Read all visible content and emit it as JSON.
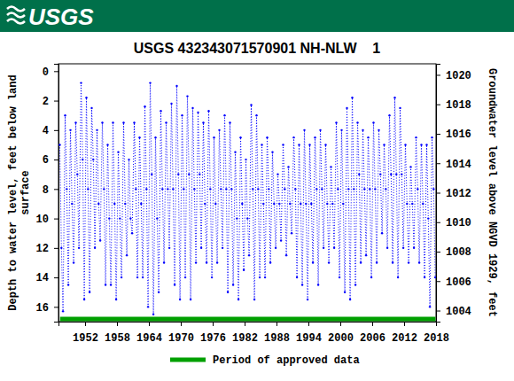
{
  "header": {
    "logo": "USGS"
  },
  "chart_data": {
    "type": "line",
    "title": "USGS 432343071570901 NH-NLW    1",
    "y_label": [
      "Depth to water level, feet below land",
      "surface"
    ],
    "y2_label": "Groundwater level above NGVD 1929, feet",
    "xlim": [
      1947,
      2018
    ],
    "xticks": [
      1952,
      1958,
      1964,
      1970,
      1976,
      1982,
      1988,
      1994,
      2000,
      2006,
      2012,
      2018
    ],
    "ylim": [
      17,
      -0.5
    ],
    "yticks": [
      0,
      2,
      4,
      6,
      8,
      10,
      12,
      14,
      16
    ],
    "y2lim": [
      1003.25,
      1020.75
    ],
    "y2ticks": [
      1004,
      1006,
      1008,
      1010,
      1012,
      1014,
      1016,
      1018,
      1020
    ],
    "grid": false,
    "legend": "bottom",
    "series": [
      {
        "color": "#0000ff",
        "marker": "dot",
        "line_style": "dotted",
        "x": [
          1947.25,
          1947.55,
          1947.85,
          1948.25,
          1948.55,
          1948.85,
          1949.25,
          1949.55,
          1949.85,
          1950.25,
          1950.55,
          1950.85,
          1951.25,
          1951.55,
          1951.85,
          1952.25,
          1952.55,
          1952.85,
          1953.25,
          1953.55,
          1953.85,
          1954.25,
          1954.55,
          1954.85,
          1955.25,
          1955.55,
          1955.85,
          1956.25,
          1956.55,
          1956.85,
          1957.25,
          1957.55,
          1957.85,
          1958.25,
          1958.55,
          1958.85,
          1959.25,
          1959.55,
          1959.85,
          1960.25,
          1960.55,
          1960.85,
          1961.25,
          1961.55,
          1961.85,
          1962.25,
          1962.55,
          1962.85,
          1963.25,
          1963.55,
          1963.85,
          1964.25,
          1964.55,
          1964.85,
          1965.25,
          1965.55,
          1965.85,
          1966.25,
          1966.55,
          1966.85,
          1967.25,
          1967.55,
          1967.85,
          1968.25,
          1968.55,
          1968.85,
          1969.25,
          1969.55,
          1969.85,
          1970.25,
          1970.55,
          1970.85,
          1971.25,
          1971.55,
          1971.85,
          1972.25,
          1972.55,
          1972.85,
          1973.25,
          1973.55,
          1973.85,
          1974.25,
          1974.55,
          1974.85,
          1975.25,
          1975.55,
          1975.85,
          1976.25,
          1976.55,
          1976.85,
          1977.25,
          1977.55,
          1977.85,
          1978.25,
          1978.55,
          1978.85,
          1979.25,
          1979.55,
          1979.85,
          1980.25,
          1980.55,
          1980.85,
          1981.25,
          1981.55,
          1981.85,
          1982.25,
          1982.55,
          1982.85,
          1983.25,
          1983.55,
          1983.85,
          1984.25,
          1984.55,
          1984.85,
          1985.25,
          1985.55,
          1985.85,
          1986.25,
          1986.55,
          1986.85,
          1987.25,
          1987.55,
          1987.85,
          1988.25,
          1988.55,
          1988.85,
          1989.25,
          1989.55,
          1989.85,
          1990.25,
          1990.55,
          1990.85,
          1991.25,
          1991.55,
          1991.85,
          1992.25,
          1992.55,
          1992.85,
          1993.25,
          1993.55,
          1993.85,
          1994.25,
          1994.55,
          1994.85,
          1995.25,
          1995.55,
          1995.85,
          1996.25,
          1996.55,
          1996.85,
          1997.25,
          1997.55,
          1997.85,
          1998.25,
          1998.55,
          1998.85,
          1999.25,
          1999.55,
          1999.85,
          2000.25,
          2000.55,
          2000.85,
          2001.25,
          2001.55,
          2001.85,
          2002.25,
          2002.55,
          2002.85,
          2003.25,
          2003.55,
          2003.85,
          2004.25,
          2004.55,
          2004.85,
          2005.25,
          2005.55,
          2005.85,
          2006.25,
          2006.55,
          2006.85,
          2007.25,
          2007.55,
          2007.85,
          2008.25,
          2008.55,
          2008.85,
          2009.25,
          2009.55,
          2009.85,
          2010.25,
          2010.55,
          2010.85,
          2011.25,
          2011.55,
          2011.85,
          2012.25,
          2012.55,
          2012.85,
          2013.25,
          2013.55,
          2013.85,
          2014.25,
          2014.55,
          2014.85,
          2015.25,
          2015.55,
          2015.85,
          2016.25,
          2016.55,
          2016.85,
          2017.25,
          2017.55,
          2017.85
        ],
        "values": [
          5,
          12,
          16.3,
          3,
          8,
          14.5,
          4,
          9,
          13,
          3.5,
          7,
          12,
          0.8,
          6,
          15.5,
          1.8,
          8,
          15,
          2.5,
          6,
          12,
          4,
          9,
          11.5,
          3.5,
          8,
          14.5,
          5,
          10,
          14.5,
          3.5,
          9,
          15.5,
          5.5,
          10,
          14,
          3.5,
          9,
          12.5,
          6,
          10,
          11,
          3.5,
          8,
          14,
          4.5,
          9,
          14,
          2.4,
          8,
          16,
          0.8,
          7,
          16.5,
          4.5,
          10,
          15,
          2.7,
          8,
          13,
          3.5,
          8,
          12,
          2.2,
          8,
          14.5,
          1,
          7,
          15.5,
          3,
          8,
          14,
          1.7,
          7,
          15.5,
          2.5,
          8,
          13,
          2.8,
          7,
          12,
          3.5,
          9,
          13,
          2.7,
          8,
          14,
          4.5,
          9,
          13,
          4,
          8,
          12,
          3,
          8,
          15,
          3.5,
          8,
          14.5,
          5.5,
          10,
          15.5,
          4.5,
          9,
          13.5,
          6,
          10,
          12.5,
          2.3,
          8,
          15.5,
          3,
          8,
          14,
          5,
          9,
          14,
          4.5,
          8,
          13,
          5.5,
          9,
          12,
          7,
          9,
          11.5,
          5,
          8,
          12.5,
          6.5,
          9,
          11,
          4.5,
          8,
          14,
          5,
          9,
          14.5,
          4,
          9,
          15.5,
          5,
          9,
          13,
          4.5,
          8,
          14.5,
          4,
          8,
          12,
          5,
          9,
          13,
          6.5,
          9,
          12,
          3.5,
          8,
          14,
          4,
          9,
          15,
          2.5,
          8,
          15.5,
          1.8,
          8,
          14.5,
          3.5,
          7,
          13,
          4,
          8,
          12.5,
          4.5,
          8,
          14,
          3.5,
          8,
          13,
          4,
          7,
          11,
          5,
          8,
          12,
          3,
          7,
          13,
          1.8,
          7,
          14,
          2.5,
          7,
          12,
          5,
          9,
          13,
          6.5,
          9,
          12,
          4.5,
          8,
          13,
          5,
          9,
          14,
          5,
          10,
          16,
          4.5,
          8,
          14
        ]
      },
      {
        "name": "Period of approved data",
        "type": "band",
        "color": "#00a000",
        "x": [
          1947.3,
          2017.9
        ]
      }
    ]
  }
}
